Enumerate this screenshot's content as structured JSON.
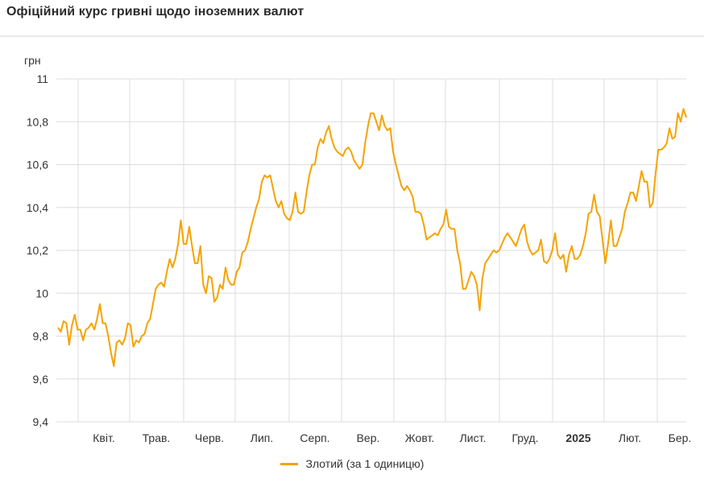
{
  "title": "Офіційний курс гривні щодо іноземних валют",
  "colors": {
    "series": "#f5a300",
    "grid": "#dddddd"
  },
  "chart_data": {
    "type": "line",
    "ylabel": "грн",
    "ylim": [
      9.4,
      11
    ],
    "y_ticks": [
      "9,4",
      "9,6",
      "9,8",
      "10",
      "10,2",
      "10,4",
      "10,6",
      "10,8",
      "11"
    ],
    "y_tick_values": [
      9.4,
      9.6,
      9.8,
      10,
      10.2,
      10.4,
      10.6,
      10.8,
      11
    ],
    "x_ticks": [
      {
        "label": "Квіт.",
        "bold": false
      },
      {
        "label": "Трав.",
        "bold": false
      },
      {
        "label": "Черв.",
        "bold": false
      },
      {
        "label": "Лип.",
        "bold": false
      },
      {
        "label": "Серп.",
        "bold": false
      },
      {
        "label": "Вер.",
        "bold": false
      },
      {
        "label": "Жовт.",
        "bold": false
      },
      {
        "label": "Лист.",
        "bold": false
      },
      {
        "label": "Груд.",
        "bold": false
      },
      {
        "label": "2025",
        "bold": true
      },
      {
        "label": "Лют.",
        "bold": false
      },
      {
        "label": "Бер.",
        "bold": false
      }
    ],
    "grid": true,
    "legend_position": "bottom",
    "series": [
      {
        "name": "Злотий (за 1 одиницю)",
        "values": [
          9.84,
          9.82,
          9.87,
          9.86,
          9.76,
          9.85,
          9.9,
          9.83,
          9.83,
          9.78,
          9.83,
          9.84,
          9.86,
          9.83,
          9.88,
          9.95,
          9.86,
          9.86,
          9.8,
          9.72,
          9.66,
          9.77,
          9.78,
          9.76,
          9.79,
          9.86,
          9.85,
          9.75,
          9.78,
          9.77,
          9.8,
          9.81,
          9.86,
          9.88,
          9.95,
          10.02,
          10.04,
          10.05,
          10.03,
          10.1,
          10.16,
          10.12,
          10.16,
          10.23,
          10.34,
          10.23,
          10.23,
          10.31,
          10.22,
          10.14,
          10.14,
          10.22,
          10.04,
          10.0,
          10.08,
          10.07,
          9.96,
          9.98,
          10.04,
          10.02,
          10.12,
          10.06,
          10.04,
          10.04,
          10.1,
          10.12,
          10.19,
          10.2,
          10.24,
          10.3,
          10.35,
          10.4,
          10.44,
          10.52,
          10.55,
          10.54,
          10.55,
          10.49,
          10.43,
          10.4,
          10.43,
          10.37,
          10.35,
          10.34,
          10.38,
          10.47,
          10.38,
          10.37,
          10.38,
          10.47,
          10.55,
          10.6,
          10.6,
          10.68,
          10.72,
          10.7,
          10.75,
          10.78,
          10.72,
          10.68,
          10.66,
          10.65,
          10.64,
          10.67,
          10.68,
          10.66,
          10.62,
          10.6,
          10.58,
          10.6,
          10.7,
          10.78,
          10.84,
          10.84,
          10.8,
          10.76,
          10.83,
          10.78,
          10.76,
          10.77,
          10.66,
          10.6,
          10.55,
          10.5,
          10.48,
          10.5,
          10.48,
          10.45,
          10.38,
          10.38,
          10.37,
          10.32,
          10.25,
          10.26,
          10.27,
          10.28,
          10.27,
          10.3,
          10.32,
          10.39,
          10.31,
          10.3,
          10.3,
          10.2,
          10.14,
          10.02,
          10.02,
          10.06,
          10.1,
          10.08,
          10.04,
          9.92,
          10.07,
          10.14,
          10.16,
          10.18,
          10.2,
          10.19,
          10.2,
          10.23,
          10.26,
          10.28,
          10.26,
          10.24,
          10.22,
          10.26,
          10.3,
          10.32,
          10.24,
          10.2,
          10.18,
          10.19,
          10.2,
          10.25,
          10.15,
          10.14,
          10.16,
          10.2,
          10.28,
          10.18,
          10.16,
          10.18,
          10.1,
          10.18,
          10.22,
          10.16,
          10.16,
          10.18,
          10.22,
          10.28,
          10.37,
          10.38,
          10.46,
          10.38,
          10.36,
          10.25,
          10.14,
          10.23,
          10.34,
          10.22,
          10.22,
          10.26,
          10.3,
          10.38,
          10.42,
          10.47,
          10.47,
          10.43,
          10.5,
          10.57,
          10.52,
          10.52,
          10.4,
          10.42,
          10.56,
          10.67,
          10.67,
          10.68,
          10.7,
          10.77,
          10.72,
          10.73,
          10.84,
          10.8,
          10.86,
          10.82
        ]
      }
    ]
  }
}
